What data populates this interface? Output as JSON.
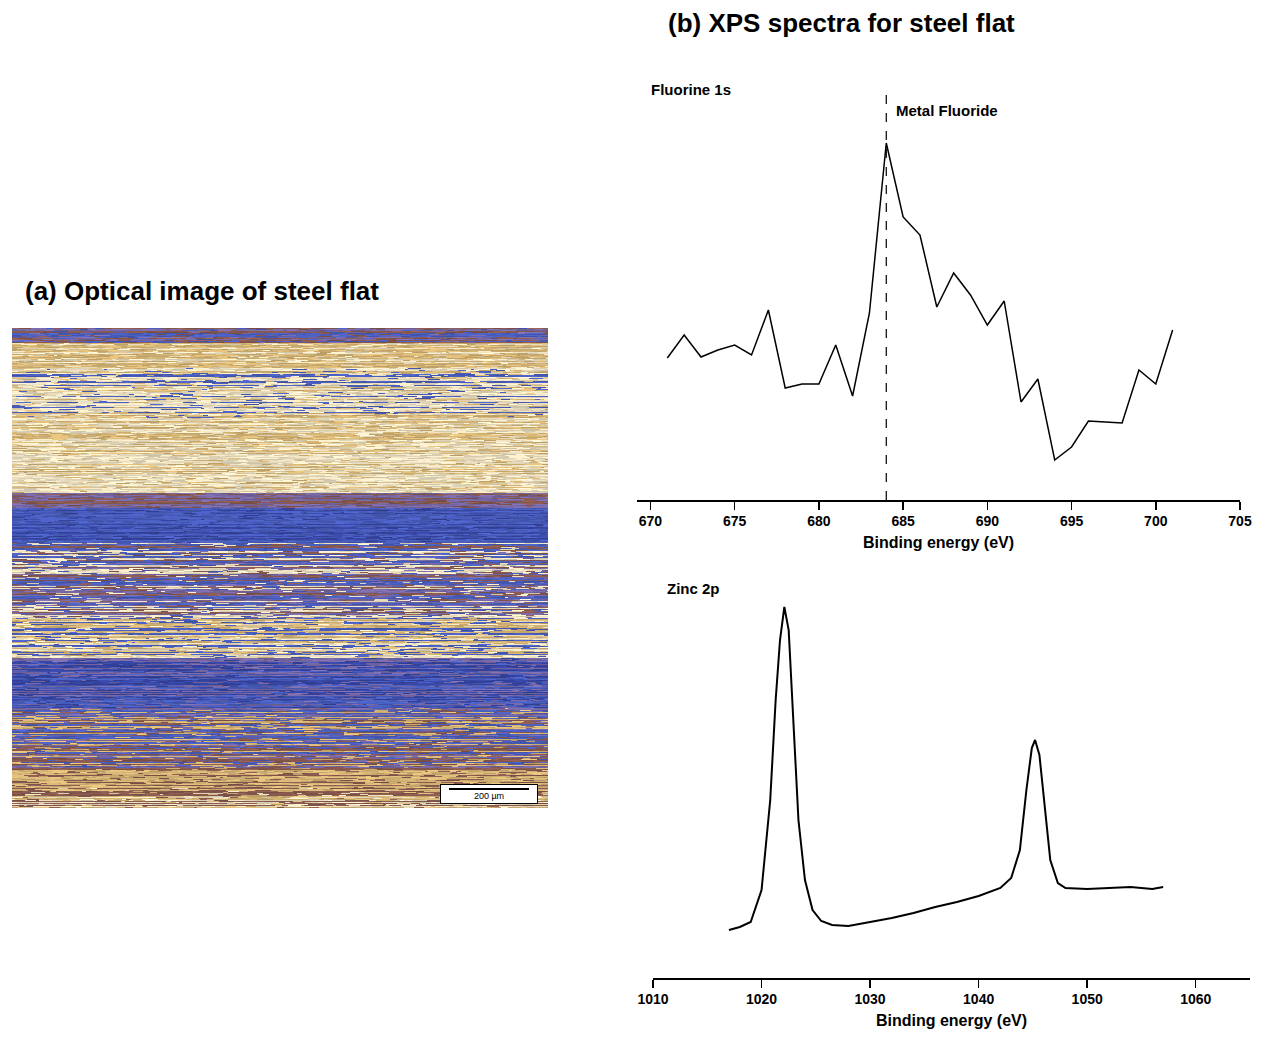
{
  "panels": {
    "a": {
      "title": "(a) Optical image of steel flat",
      "scale_bar": "200 µm"
    },
    "b": {
      "title": "(b) XPS spectra for steel flat"
    }
  },
  "chart_data": [
    {
      "type": "line",
      "title": "Fluorine 1s",
      "x_label": "Binding energy (eV)",
      "x": [
        671,
        672,
        673,
        674,
        675,
        676,
        677,
        678,
        679,
        680,
        681,
        682,
        683,
        684,
        685,
        686,
        687,
        688,
        689,
        690,
        691,
        692,
        693,
        694,
        695,
        696,
        697,
        698,
        699,
        700,
        701
      ],
      "values": [
        142,
        165,
        143,
        150,
        155,
        145,
        190,
        112,
        116,
        116,
        155,
        104,
        187,
        357,
        283,
        265,
        193,
        227,
        205,
        175,
        199,
        98,
        121,
        40,
        53,
        79,
        78,
        77,
        130,
        116,
        170
      ],
      "color": "#000000",
      "xlim": [
        669.2,
        705
      ],
      "xticks": [
        670,
        675,
        680,
        685,
        690,
        695,
        700,
        705
      ],
      "ylim": [
        0,
        400
      ],
      "yticks": [],
      "tick_labels": "x",
      "grid": false,
      "annotations": [
        {
          "x": 684,
          "text": "Metal Fluoride",
          "line_style": "dashed"
        }
      ]
    },
    {
      "type": "line",
      "title": "Zinc 2p",
      "x_label": "Binding energy (eV)",
      "x": [
        1017,
        1018,
        1019,
        1020,
        1020.8,
        1021.3,
        1021.7,
        1022.1,
        1022.5,
        1022.9,
        1023.4,
        1024,
        1024.7,
        1025.5,
        1026.5,
        1028,
        1030,
        1032,
        1034,
        1036,
        1038,
        1040,
        1042,
        1043,
        1043.8,
        1044.4,
        1044.9,
        1045.2,
        1045.6,
        1046,
        1046.6,
        1047.3,
        1048,
        1050,
        1052,
        1054,
        1056,
        1057
      ],
      "values": [
        48,
        51,
        56,
        88,
        178,
        278,
        338,
        371,
        348,
        258,
        158,
        98,
        68,
        57,
        53,
        52,
        56,
        60,
        65,
        71,
        76,
        82,
        90,
        100,
        128,
        188,
        230,
        238,
        223,
        178,
        118,
        95,
        90,
        89,
        90,
        91,
        89,
        91
      ],
      "color": "#000000",
      "xlim": [
        1010,
        1065
      ],
      "xticks": [
        1010,
        1020,
        1030,
        1040,
        1050,
        1060
      ],
      "ylim": [
        0,
        400
      ],
      "yticks": [],
      "tick_labels": "x",
      "grid": false
    }
  ]
}
